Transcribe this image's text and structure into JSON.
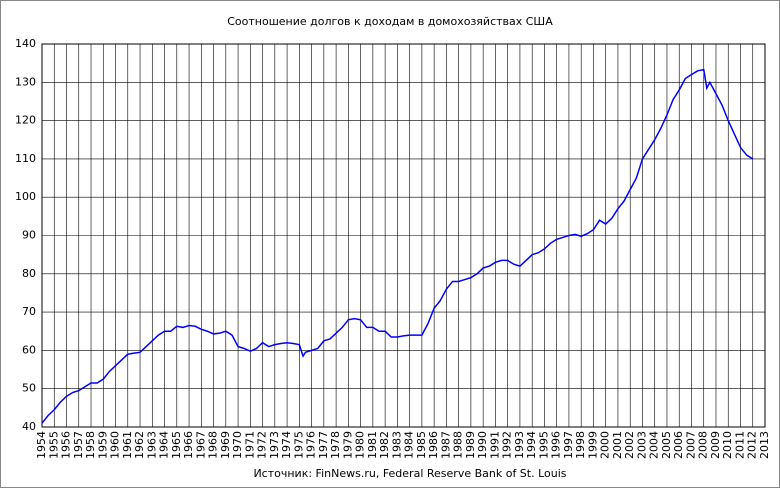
{
  "chart_data": {
    "type": "line",
    "title": "Соотношение долгов к доходам в домохозяйствах США",
    "source": "Источник: FinNews.ru, Federal Reserve Bank of St. Louis",
    "xlim": [
      1954,
      2013
    ],
    "xticks": [
      1954,
      1955,
      1956,
      1957,
      1958,
      1959,
      1960,
      1961,
      1962,
      1963,
      1964,
      1965,
      1966,
      1967,
      1968,
      1969,
      1970,
      1971,
      1972,
      1973,
      1974,
      1975,
      1976,
      1977,
      1978,
      1979,
      1980,
      1981,
      1982,
      1983,
      1984,
      1985,
      1986,
      1987,
      1988,
      1989,
      1990,
      1991,
      1992,
      1993,
      1994,
      1995,
      1996,
      1997,
      1998,
      1999,
      2000,
      2001,
      2002,
      2003,
      2004,
      2005,
      2006,
      2007,
      2008,
      2009,
      2010,
      2011,
      2012,
      2013
    ],
    "ylim": [
      40,
      140
    ],
    "yticks": [
      40,
      50,
      60,
      70,
      80,
      90,
      100,
      110,
      120,
      130,
      140
    ],
    "grid": true,
    "series": [
      {
        "color": "#0000ff",
        "x": [
          1954.0,
          1954.5,
          1955.0,
          1955.5,
          1956.0,
          1956.5,
          1957.0,
          1957.5,
          1958.0,
          1958.5,
          1959.0,
          1959.5,
          1960.0,
          1960.5,
          1961.0,
          1961.5,
          1962.0,
          1962.5,
          1963.0,
          1963.5,
          1964.0,
          1964.5,
          1965.0,
          1965.5,
          1966.0,
          1966.5,
          1967.0,
          1967.5,
          1968.0,
          1968.5,
          1969.0,
          1969.5,
          1970.0,
          1970.5,
          1971.0,
          1971.5,
          1972.0,
          1972.5,
          1973.0,
          1973.5,
          1974.0,
          1974.5,
          1975.0,
          1975.3,
          1975.5,
          1976.0,
          1976.5,
          1977.0,
          1977.5,
          1978.0,
          1978.5,
          1979.0,
          1979.5,
          1980.0,
          1980.5,
          1981.0,
          1981.5,
          1982.0,
          1982.5,
          1983.0,
          1983.5,
          1984.0,
          1984.5,
          1985.0,
          1985.5,
          1986.0,
          1986.5,
          1987.0,
          1987.5,
          1988.0,
          1988.5,
          1989.0,
          1989.5,
          1990.0,
          1990.5,
          1991.0,
          1991.5,
          1992.0,
          1992.5,
          1993.0,
          1993.5,
          1994.0,
          1994.5,
          1995.0,
          1995.5,
          1996.0,
          1996.5,
          1997.0,
          1997.5,
          1998.0,
          1998.5,
          1999.0,
          1999.5,
          2000.0,
          2000.5,
          2001.0,
          2001.5,
          2002.0,
          2002.5,
          2003.0,
          2003.5,
          2004.0,
          2004.5,
          2005.0,
          2005.5,
          2006.0,
          2006.5,
          2007.0,
          2007.5,
          2008.0,
          2008.25,
          2008.5,
          2009.0,
          2009.5,
          2010.0,
          2010.5,
          2011.0,
          2011.5,
          2012.0
        ],
        "values": [
          41,
          43,
          44.5,
          46.5,
          48,
          49,
          49.5,
          50.5,
          51.5,
          51.5,
          52.5,
          54.5,
          56,
          57.5,
          59,
          59.3,
          59.5,
          61,
          62.5,
          64,
          65,
          65,
          66.3,
          66,
          66.5,
          66.3,
          65.5,
          65,
          64.3,
          64.5,
          65,
          64,
          61,
          60.5,
          59.8,
          60.5,
          62,
          61,
          61.5,
          61.8,
          62,
          61.8,
          61.5,
          58.5,
          59.5,
          60,
          60.5,
          62.5,
          63,
          64.5,
          66,
          68,
          68.3,
          68,
          66,
          66,
          65,
          65,
          63.5,
          63.5,
          63.8,
          64,
          64,
          64,
          67,
          71,
          73,
          76,
          78,
          78,
          78.5,
          79,
          80,
          81.5,
          82,
          83,
          83.5,
          83.5,
          82.5,
          82,
          83.5,
          85,
          85.5,
          86.5,
          88,
          89,
          89.5,
          90,
          90.3,
          89.8,
          90.5,
          91.5,
          94,
          93,
          94.5,
          97,
          99,
          102,
          105,
          110,
          112.5,
          115,
          118,
          121.5,
          125.5,
          128,
          131,
          132,
          133,
          133.3,
          128.5,
          130,
          127,
          124,
          120,
          116.5,
          113,
          111,
          110
        ]
      }
    ]
  }
}
